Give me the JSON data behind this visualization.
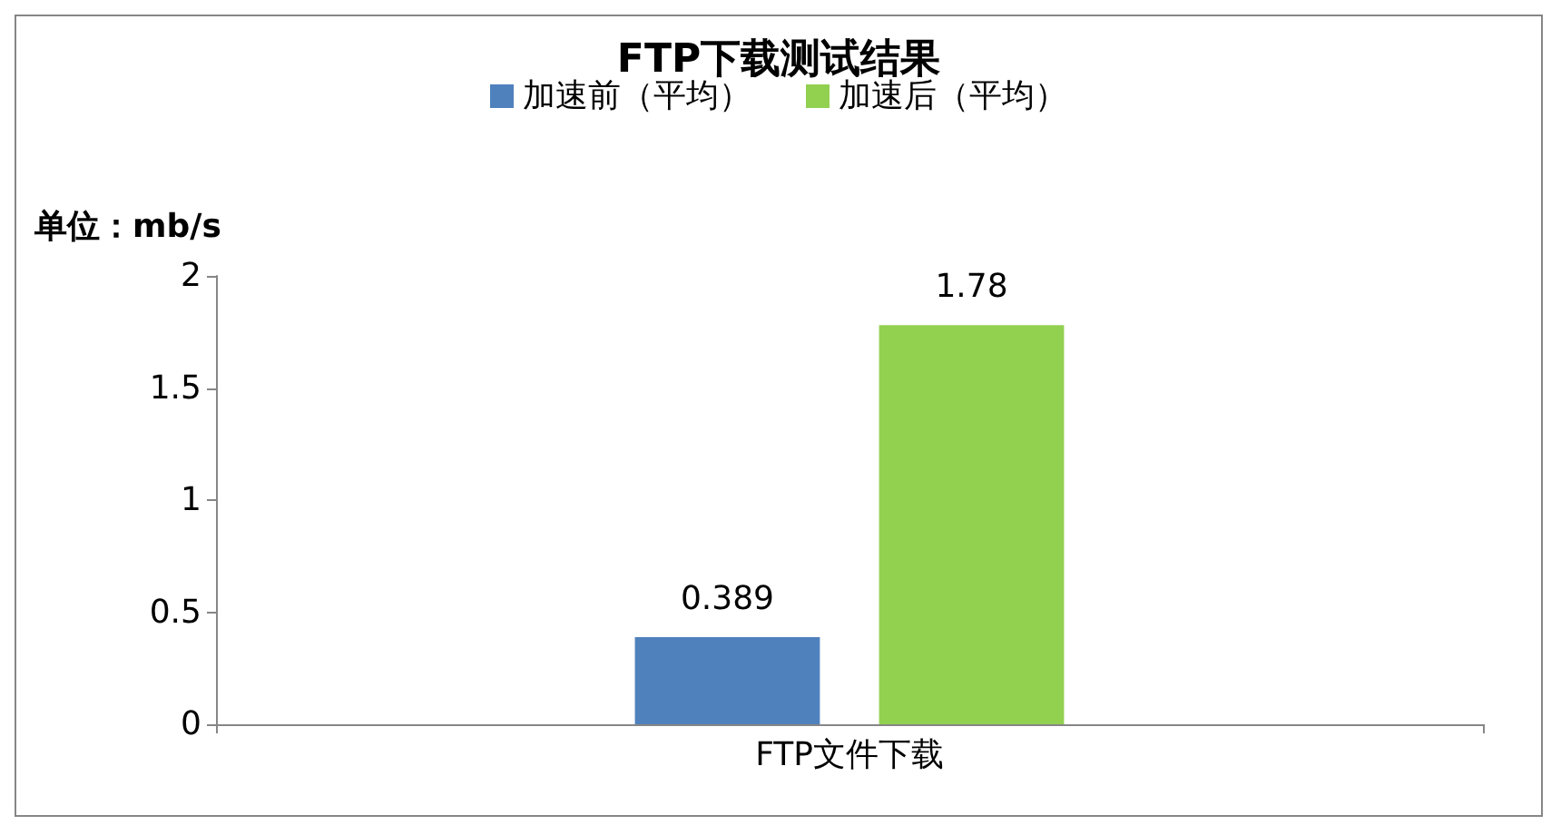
{
  "chart_data": {
    "type": "bar",
    "title": "FTP下载测试结果",
    "ylabel": "单位：mb/s",
    "categories": [
      "FTP文件下载"
    ],
    "series": [
      {
        "name": "加速前（平均）",
        "color": "#4f81bd",
        "values": [
          0.389
        ]
      },
      {
        "name": "加速后（平均）",
        "color": "#92d050",
        "values": [
          1.78
        ]
      }
    ],
    "ylim": [
      0,
      2
    ],
    "yticks": [
      0,
      0.5,
      1,
      1.5,
      2
    ],
    "grid": false,
    "legend": "top",
    "data_labels": true
  }
}
